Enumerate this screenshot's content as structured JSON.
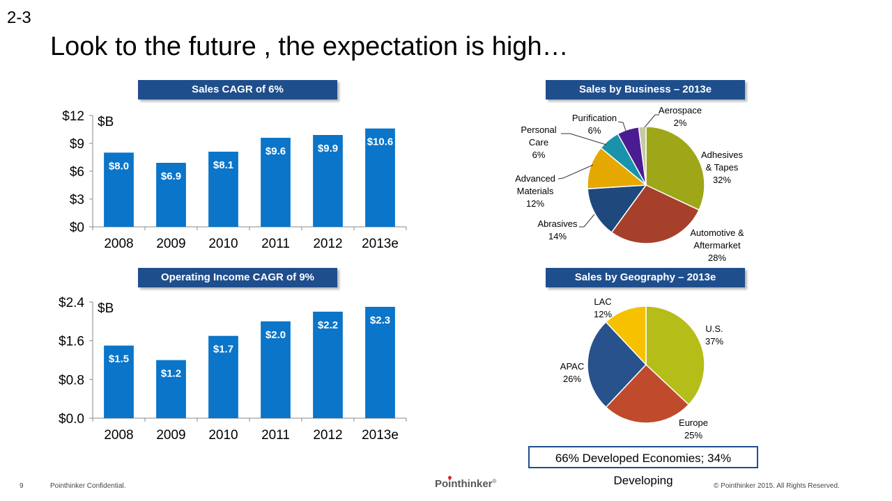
{
  "page": {
    "slide_number": "2-3",
    "title": "Look to the future , the expectation is high…",
    "geo_note": "66% Developed Economies; 34% Developing",
    "footer": {
      "page": "9",
      "confidential": "Pointhinker Confidential.",
      "logo": "Pointhinker",
      "logo_mark": "®",
      "copyright": "© Pointhinker  2015. All Rights Reserved."
    }
  },
  "colors": {
    "bar": "#0a75c9",
    "banner": "#1f4e8c"
  },
  "chart_data": [
    {
      "type": "bar",
      "title": "Sales CAGR of 6%",
      "unit": "$B",
      "categories": [
        "2008",
        "2009",
        "2010",
        "2011",
        "2012",
        "2013e"
      ],
      "values": [
        8.0,
        6.9,
        8.1,
        9.6,
        9.9,
        10.6
      ],
      "data_labels": [
        "$8.0",
        "$6.9",
        "$8.1",
        "$9.6",
        "$9.9",
        "$10.6"
      ],
      "yticks": [
        "$0",
        "$3",
        "$6",
        "$9",
        "$12"
      ],
      "ylim": [
        0,
        12
      ]
    },
    {
      "type": "bar",
      "title": "Operating Income CAGR of 9%",
      "unit": "$B",
      "categories": [
        "2008",
        "2009",
        "2010",
        "2011",
        "2012",
        "2013e"
      ],
      "values": [
        1.5,
        1.2,
        1.7,
        2.0,
        2.2,
        2.3
      ],
      "data_labels": [
        "$1.5",
        "$1.2",
        "$1.7",
        "$2.0",
        "$2.2",
        "$2.3"
      ],
      "yticks": [
        "$0.0",
        "$0.8",
        "$1.6",
        "$2.4"
      ],
      "ylim": [
        0,
        2.4
      ]
    },
    {
      "type": "pie",
      "title": "Sales by Business – 2013e",
      "slices": [
        {
          "name": "Adhesives & Tapes",
          "value": 32,
          "label": [
            "Adhesives",
            "& Tapes",
            "32%"
          ],
          "color": "#9da718"
        },
        {
          "name": "Automotive & Aftermarket",
          "value": 28,
          "label": [
            "Automotive &",
            "Aftermarket",
            "28%"
          ],
          "color": "#a6402a"
        },
        {
          "name": "Abrasives",
          "value": 14,
          "label": [
            "Abrasives",
            "14%"
          ],
          "color": "#1f497d"
        },
        {
          "name": "Advanced Materials",
          "value": 12,
          "label": [
            "Advanced",
            "Materials",
            "12%"
          ],
          "color": "#e5a800"
        },
        {
          "name": "Personal Care",
          "value": 6,
          "label": [
            "Personal",
            "Care",
            "6%"
          ],
          "color": "#1893ab"
        },
        {
          "name": "Purification",
          "value": 6,
          "label": [
            "Purification",
            "6%"
          ],
          "color": "#4b1c91"
        },
        {
          "name": "Aerospace",
          "value": 2,
          "label": [
            "Aerospace",
            "2%"
          ],
          "color": "#c4c9a6"
        }
      ]
    },
    {
      "type": "pie",
      "title": "Sales by Geography – 2013e",
      "slices": [
        {
          "name": "U.S.",
          "value": 37,
          "label": [
            "U.S.",
            "37%"
          ],
          "color": "#b5bd19"
        },
        {
          "name": "Europe",
          "value": 25,
          "label": [
            "Europe",
            "25%"
          ],
          "color": "#bf4b2c"
        },
        {
          "name": "APAC",
          "value": 26,
          "label": [
            "APAC",
            "26%"
          ],
          "color": "#27528b"
        },
        {
          "name": "LAC",
          "value": 12,
          "label": [
            "LAC",
            "12%"
          ],
          "color": "#f6c200"
        }
      ]
    }
  ]
}
